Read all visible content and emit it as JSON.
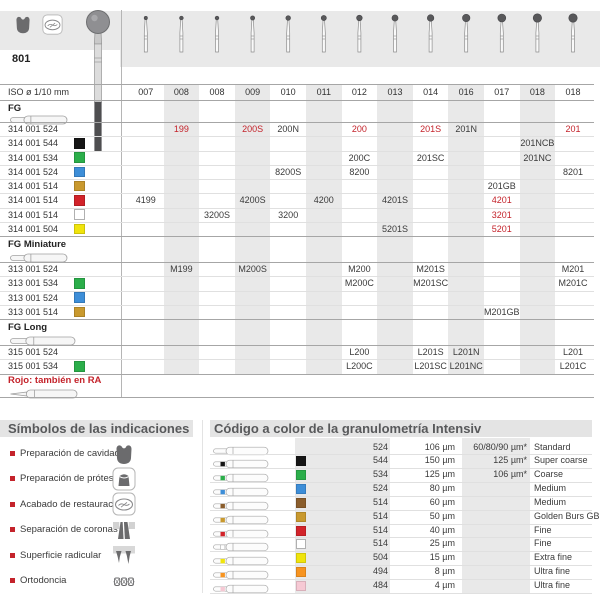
{
  "page": {
    "figure_number": "801",
    "iso_label": "ISO ø 1/10 mm",
    "iso_sizes": [
      "007",
      "008",
      "008",
      "009",
      "010",
      "011",
      "012",
      "013",
      "014",
      "016",
      "017",
      "018",
      "018"
    ],
    "header_indication_icons": [
      "cavity-prep-icon",
      "restoration-finish-icon"
    ],
    "note": "Rojo: también en RA"
  },
  "sections": [
    {
      "label": "FG",
      "shape_icon": "fg-bur-icon",
      "rows": [
        {
          "code": "314 001 524",
          "square": "none",
          "cells": [
            {
              "col": 2,
              "text": "199",
              "red": true
            },
            {
              "col": 4,
              "text": "200S",
              "red": true
            },
            {
              "col": 5,
              "text": "200N"
            },
            {
              "col": 7,
              "text": "200",
              "red": true
            },
            {
              "col": 9,
              "text": "201S",
              "red": true
            },
            {
              "col": 10,
              "text": "201N"
            },
            {
              "col": 13,
              "text": "201",
              "red": true
            }
          ]
        },
        {
          "code": "314 001 544",
          "square": "black",
          "cells": [
            {
              "col": 12,
              "text": "201NCB"
            }
          ]
        },
        {
          "code": "314 001 534",
          "square": "green",
          "cells": [
            {
              "col": 7,
              "text": "200C"
            },
            {
              "col": 9,
              "text": "201SC"
            },
            {
              "col": 12,
              "text": "201NC"
            }
          ]
        },
        {
          "code": "314 001 524",
          "square": "blue",
          "cells": [
            {
              "col": 5,
              "text": "8200S"
            },
            {
              "col": 7,
              "text": "8200"
            },
            {
              "col": 13,
              "text": "8201"
            }
          ]
        },
        {
          "code": "314 001 514",
          "square": "gold",
          "cells": [
            {
              "col": 11,
              "text": "201GB"
            }
          ]
        },
        {
          "code": "314 001 514",
          "square": "red",
          "cells": [
            {
              "col": 1,
              "text": "4199"
            },
            {
              "col": 4,
              "text": "4200S"
            },
            {
              "col": 6,
              "text": "4200"
            },
            {
              "col": 8,
              "text": "4201S"
            },
            {
              "col": 11,
              "text": "4201",
              "red": true
            }
          ]
        },
        {
          "code": "314 001 514",
          "square": "white",
          "cells": [
            {
              "col": 3,
              "text": "3200S"
            },
            {
              "col": 5,
              "text": "3200"
            },
            {
              "col": 11,
              "text": "3201",
              "red": true
            }
          ]
        },
        {
          "code": "314 001 504",
          "square": "yellow",
          "cells": [
            {
              "col": 8,
              "text": "5201S"
            },
            {
              "col": 11,
              "text": "5201",
              "red": true
            }
          ]
        }
      ]
    },
    {
      "label": "FG Miniature",
      "shape_icon": "fg-miniature-bur-icon",
      "rows": [
        {
          "code": "313 001 524",
          "square": "none",
          "cells": [
            {
              "col": 2,
              "text": "M199"
            },
            {
              "col": 4,
              "text": "M200S"
            },
            {
              "col": 7,
              "text": "M200"
            },
            {
              "col": 9,
              "text": "M201S"
            },
            {
              "col": 13,
              "text": "M201"
            }
          ]
        },
        {
          "code": "313 001 534",
          "square": "green",
          "cells": [
            {
              "col": 7,
              "text": "M200C"
            },
            {
              "col": 9,
              "text": "M201SC"
            },
            {
              "col": 13,
              "text": "M201C"
            }
          ]
        },
        {
          "code": "313 001 524",
          "square": "blue",
          "cells": []
        },
        {
          "code": "313 001 514",
          "square": "gold",
          "cells": [
            {
              "col": 11,
              "text": "M201GB"
            }
          ]
        }
      ]
    },
    {
      "label": "FG Long",
      "shape_icon": "fg-long-bur-icon",
      "rows": [
        {
          "code": "315 001 524",
          "square": "none",
          "cells": [
            {
              "col": 7,
              "text": "L200"
            },
            {
              "col": 9,
              "text": "L201S"
            },
            {
              "col": 10,
              "text": "L201N"
            },
            {
              "col": 13,
              "text": "L201"
            }
          ]
        },
        {
          "code": "315 001 534",
          "square": "green",
          "cells": [
            {
              "col": 7,
              "text": "L200C"
            },
            {
              "col": 9,
              "text": "L201SC"
            },
            {
              "col": 10,
              "text": "L201NC"
            },
            {
              "col": 13,
              "text": "L201C"
            }
          ]
        }
      ]
    }
  ],
  "symbols": {
    "title": "Símbolos de las indicaciones",
    "items": [
      {
        "label": "Preparación de cavidades",
        "icon": "cavity-prep-icon"
      },
      {
        "label": "Preparación de prótesis",
        "icon": "prosthesis-prep-icon"
      },
      {
        "label": "Acabado de restauraciones",
        "icon": "restoration-finish-icon"
      },
      {
        "label": "Separación de coronas",
        "icon": "crown-separation-icon"
      },
      {
        "label": "Superficie radicular",
        "icon": "root-surface-icon"
      },
      {
        "label": "Ortodoncia",
        "icon": "orthodontics-icon"
      }
    ]
  },
  "color_code": {
    "title": "Código a color de la granulometría Intensiv",
    "rows": [
      {
        "color": "none",
        "code": "524",
        "grit": "106 µm",
        "alt": "60/80/90 µm*",
        "name": "Standard"
      },
      {
        "color": "black",
        "code": "544",
        "grit": "150 µm",
        "alt": "125 µm*",
        "name": "Super coarse"
      },
      {
        "color": "green",
        "code": "534",
        "grit": "125 µm",
        "alt": "106 µm*",
        "name": "Coarse"
      },
      {
        "color": "blue",
        "code": "524",
        "grit": "80 µm",
        "alt": "",
        "name": "Medium"
      },
      {
        "color": "brown",
        "code": "514",
        "grit": "60 µm",
        "alt": "",
        "name": "Medium"
      },
      {
        "color": "gold",
        "code": "514",
        "grit": "50 µm",
        "alt": "",
        "name": "Golden Burs GB"
      },
      {
        "color": "red",
        "code": "514",
        "grit": "40 µm",
        "alt": "",
        "name": "Fine"
      },
      {
        "color": "white",
        "code": "514",
        "grit": "25 µm",
        "alt": "",
        "name": "Fine"
      },
      {
        "color": "yellow",
        "code": "504",
        "grit": "15 µm",
        "alt": "",
        "name": "Extra fine"
      },
      {
        "color": "orange",
        "code": "494",
        "grit": "8 µm",
        "alt": "",
        "name": "Ultra fine"
      },
      {
        "color": "pink",
        "code": "484",
        "grit": "4 µm",
        "alt": "",
        "name": "Ultra fine"
      }
    ]
  },
  "colors": {
    "accent_red": "#c4232b",
    "band_gray": "#e9e9e9",
    "heading_gray": "#58595b",
    "swatches": {
      "none": "transparent",
      "black": "#161616",
      "green": "#2bae4a",
      "blue": "#3d8ed8",
      "gold": "#c9992e",
      "red": "#d2232a",
      "white": "#ffffff",
      "yellow": "#f0e40c",
      "brown": "#8a5d2c",
      "orange": "#f79420",
      "pink": "#f6c9d4"
    }
  }
}
